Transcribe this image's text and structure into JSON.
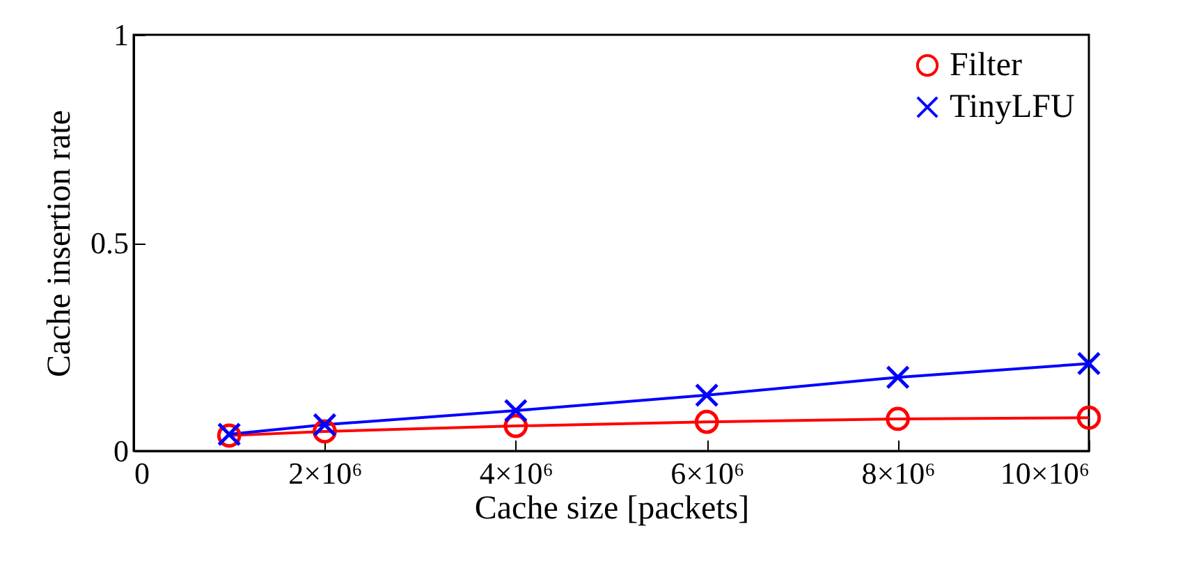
{
  "chart_data": {
    "type": "line",
    "xlabel": "Cache size [packets]",
    "ylabel": "Cache insertion rate",
    "x": [
      1000000,
      2000000,
      4000000,
      6000000,
      8000000,
      10000000
    ],
    "series": [
      {
        "name": "Filter",
        "color": "#ff0000",
        "marker": "circle",
        "values": [
          0.037,
          0.047,
          0.06,
          0.07,
          0.077,
          0.08
        ]
      },
      {
        "name": "TinyLFU",
        "color": "#0000ff",
        "marker": "cross",
        "values": [
          0.04,
          0.063,
          0.097,
          0.134,
          0.177,
          0.21
        ]
      }
    ],
    "xlim": [
      0,
      10000000
    ],
    "xticks": [
      0,
      {
        "value": 2000000,
        "label": "2×10⁶"
      },
      {
        "value": 4000000,
        "label": "4×10⁶"
      },
      {
        "value": 6000000,
        "label": "6×10⁶"
      },
      {
        "value": 8000000,
        "label": "8×10⁶"
      },
      {
        "value": 10000000,
        "label": "10×10⁶"
      }
    ],
    "ylim": [
      0,
      1
    ],
    "yticks": [
      0,
      0.5,
      1
    ],
    "grid": false,
    "legend": "top right",
    "line_style": "solid"
  }
}
